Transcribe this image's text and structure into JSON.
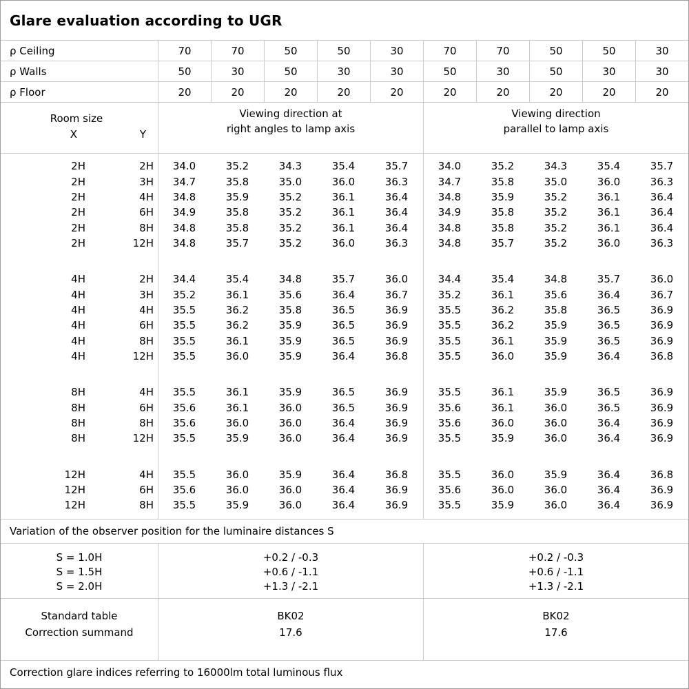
{
  "title": "Glare evaluation according to UGR",
  "header": {
    "rho_rows": [
      {
        "label": "ρ Ceiling",
        "values": [
          "70",
          "70",
          "50",
          "50",
          "30",
          "70",
          "70",
          "50",
          "50",
          "30"
        ]
      },
      {
        "label": "ρ Walls",
        "values": [
          "50",
          "30",
          "50",
          "30",
          "30",
          "50",
          "30",
          "50",
          "30",
          "30"
        ]
      },
      {
        "label": "ρ Floor",
        "values": [
          "20",
          "20",
          "20",
          "20",
          "20",
          "20",
          "20",
          "20",
          "20",
          "20"
        ]
      }
    ],
    "room_size_label": "Room size",
    "x_label": "X",
    "y_label": "Y",
    "viewing_left_line1": "Viewing direction at",
    "viewing_left_line2": "right angles to lamp axis",
    "viewing_right_line1": "Viewing direction",
    "viewing_right_line2": "parallel to lamp axis"
  },
  "groups": [
    {
      "rows": [
        {
          "x": "2H",
          "y": "2H",
          "values": [
            "34.0",
            "35.2",
            "34.3",
            "35.4",
            "35.7",
            "34.0",
            "35.2",
            "34.3",
            "35.4",
            "35.7"
          ]
        },
        {
          "x": "2H",
          "y": "3H",
          "values": [
            "34.7",
            "35.8",
            "35.0",
            "36.0",
            "36.3",
            "34.7",
            "35.8",
            "35.0",
            "36.0",
            "36.3"
          ]
        },
        {
          "x": "2H",
          "y": "4H",
          "values": [
            "34.8",
            "35.9",
            "35.2",
            "36.1",
            "36.4",
            "34.8",
            "35.9",
            "35.2",
            "36.1",
            "36.4"
          ]
        },
        {
          "x": "2H",
          "y": "6H",
          "values": [
            "34.9",
            "35.8",
            "35.2",
            "36.1",
            "36.4",
            "34.9",
            "35.8",
            "35.2",
            "36.1",
            "36.4"
          ]
        },
        {
          "x": "2H",
          "y": "8H",
          "values": [
            "34.8",
            "35.8",
            "35.2",
            "36.1",
            "36.4",
            "34.8",
            "35.8",
            "35.2",
            "36.1",
            "36.4"
          ]
        },
        {
          "x": "2H",
          "y": "12H",
          "values": [
            "34.8",
            "35.7",
            "35.2",
            "36.0",
            "36.3",
            "34.8",
            "35.7",
            "35.2",
            "36.0",
            "36.3"
          ]
        }
      ]
    },
    {
      "rows": [
        {
          "x": "4H",
          "y": "2H",
          "values": [
            "34.4",
            "35.4",
            "34.8",
            "35.7",
            "36.0",
            "34.4",
            "35.4",
            "34.8",
            "35.7",
            "36.0"
          ]
        },
        {
          "x": "4H",
          "y": "3H",
          "values": [
            "35.2",
            "36.1",
            "35.6",
            "36.4",
            "36.7",
            "35.2",
            "36.1",
            "35.6",
            "36.4",
            "36.7"
          ]
        },
        {
          "x": "4H",
          "y": "4H",
          "values": [
            "35.5",
            "36.2",
            "35.8",
            "36.5",
            "36.9",
            "35.5",
            "36.2",
            "35.8",
            "36.5",
            "36.9"
          ]
        },
        {
          "x": "4H",
          "y": "6H",
          "values": [
            "35.5",
            "36.2",
            "35.9",
            "36.5",
            "36.9",
            "35.5",
            "36.2",
            "35.9",
            "36.5",
            "36.9"
          ]
        },
        {
          "x": "4H",
          "y": "8H",
          "values": [
            "35.5",
            "36.1",
            "35.9",
            "36.5",
            "36.9",
            "35.5",
            "36.1",
            "35.9",
            "36.5",
            "36.9"
          ]
        },
        {
          "x": "4H",
          "y": "12H",
          "values": [
            "35.5",
            "36.0",
            "35.9",
            "36.4",
            "36.8",
            "35.5",
            "36.0",
            "35.9",
            "36.4",
            "36.8"
          ]
        }
      ]
    },
    {
      "rows": [
        {
          "x": "8H",
          "y": "4H",
          "values": [
            "35.5",
            "36.1",
            "35.9",
            "36.5",
            "36.9",
            "35.5",
            "36.1",
            "35.9",
            "36.5",
            "36.9"
          ]
        },
        {
          "x": "8H",
          "y": "6H",
          "values": [
            "35.6",
            "36.1",
            "36.0",
            "36.5",
            "36.9",
            "35.6",
            "36.1",
            "36.0",
            "36.5",
            "36.9"
          ]
        },
        {
          "x": "8H",
          "y": "8H",
          "values": [
            "35.6",
            "36.0",
            "36.0",
            "36.4",
            "36.9",
            "35.6",
            "36.0",
            "36.0",
            "36.4",
            "36.9"
          ]
        },
        {
          "x": "8H",
          "y": "12H",
          "values": [
            "35.5",
            "35.9",
            "36.0",
            "36.4",
            "36.9",
            "35.5",
            "35.9",
            "36.0",
            "36.4",
            "36.9"
          ]
        }
      ]
    },
    {
      "rows": [
        {
          "x": "12H",
          "y": "4H",
          "values": [
            "35.5",
            "36.0",
            "35.9",
            "36.4",
            "36.8",
            "35.5",
            "36.0",
            "35.9",
            "36.4",
            "36.8"
          ]
        },
        {
          "x": "12H",
          "y": "6H",
          "values": [
            "35.6",
            "36.0",
            "36.0",
            "36.4",
            "36.9",
            "35.6",
            "36.0",
            "36.0",
            "36.4",
            "36.9"
          ]
        },
        {
          "x": "12H",
          "y": "8H",
          "values": [
            "35.5",
            "35.9",
            "36.0",
            "36.4",
            "36.9",
            "35.5",
            "35.9",
            "36.0",
            "36.4",
            "36.9"
          ]
        }
      ]
    }
  ],
  "variation_note": "Variation of the observer position for the luminaire distances S",
  "s_section": {
    "labels": [
      "S = 1.0H",
      "S = 1.5H",
      "S = 2.0H"
    ],
    "left_values": [
      "+0.2 / -0.3",
      "+0.6 / -1.1",
      "+1.3 / -2.1"
    ],
    "right_values": [
      "+0.2 / -0.3",
      "+0.6 / -1.1",
      "+1.3 / -2.1"
    ]
  },
  "summary": {
    "standard_table_label": "Standard table",
    "correction_summand_label": "Correction summand",
    "left": {
      "standard_table": "BK02",
      "correction_summand": "17.6"
    },
    "right": {
      "standard_table": "BK02",
      "correction_summand": "17.6"
    }
  },
  "footer_note": "Correction glare indices referring to 16000lm total luminous flux",
  "colors": {
    "grid_line": "#c9c9c9",
    "outer_border": "#9e9e9e",
    "text": "#000000",
    "background": "#ffffff"
  }
}
